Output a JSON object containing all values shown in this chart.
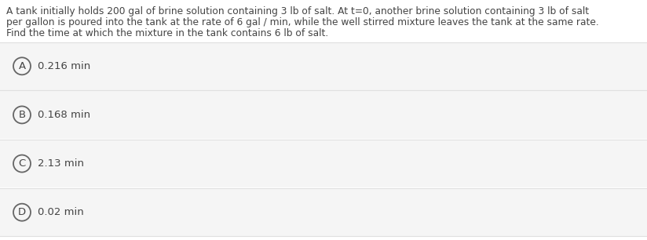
{
  "background_color": "#ffffff",
  "question_text_line1": "A tank initially holds 200 gal of brine solution containing 3 lb of salt. At t=0, another brine solution containing 3 lb of salt",
  "question_text_line2": "per gallon is poured into the tank at the rate of 6 gal / min, while the well stirred mixture leaves the tank at the same rate.",
  "question_text_line3": "Find the time at which the mixture in the tank contains 6 lb of salt.",
  "options": [
    {
      "label": "A",
      "text": "0.216 min"
    },
    {
      "label": "B",
      "text": "0.168 min"
    },
    {
      "label": "C",
      "text": "2.13 min"
    },
    {
      "label": "D",
      "text": "0.02 min"
    }
  ],
  "option_box_color": "#f5f5f5",
  "option_sep_color": "#e0e0e0",
  "text_color": "#444444",
  "circle_edge_color": "#666666",
  "circle_face_color": "#f5f5f5",
  "question_fontsize": 8.8,
  "option_fontsize": 9.5,
  "label_fontsize": 9.5
}
